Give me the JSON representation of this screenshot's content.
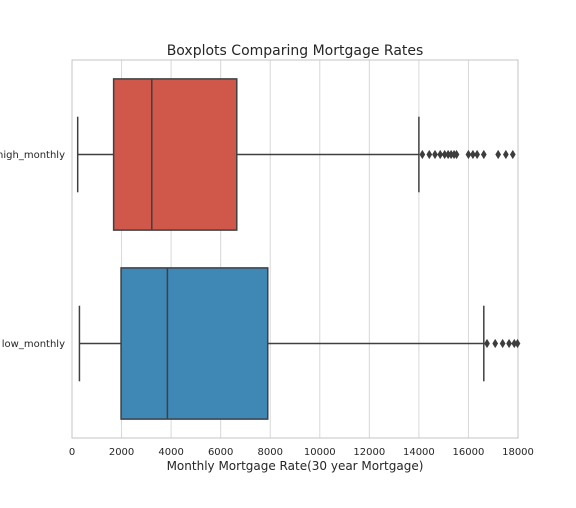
{
  "chart_data": {
    "type": "boxplot",
    "orientation": "horizontal",
    "title": "Boxplots Comparing Mortgage Rates",
    "xlabel": "Monthly Mortgage Rate(30 year Mortgage)",
    "ylabel": "",
    "xlim": [
      0,
      18000
    ],
    "xticks": [
      0,
      2000,
      4000,
      6000,
      8000,
      10000,
      12000,
      14000,
      16000,
      18000
    ],
    "xtick_labels": [
      "0",
      "2000",
      "4000",
      "6000",
      "8000",
      "10000",
      "12000",
      "14000",
      "16000",
      "18000"
    ],
    "grid": "vertical",
    "categories": [
      "high_monthly",
      "low_monthly"
    ],
    "series": [
      {
        "category": "high_monthly",
        "whisker_low": 230,
        "q1": 1680,
        "median": 3220,
        "q3": 6650,
        "whisker_high": 14000,
        "outliers": [
          14140,
          14420,
          14650,
          14860,
          15040,
          15180,
          15300,
          15420,
          15520,
          16000,
          16180,
          16350,
          16620,
          17200,
          17510,
          17790
        ],
        "color": "#d0584a"
      },
      {
        "category": "low_monthly",
        "whisker_low": 300,
        "q1": 1980,
        "median": 3850,
        "q3": 7900,
        "whisker_high": 16620,
        "outliers": [
          16750,
          17080,
          17380,
          17640,
          17850,
          17980
        ],
        "color": "#3f87b5"
      }
    ]
  },
  "colors": {
    "axis_line": "#c4c4c4",
    "grid": "#d8d8d8",
    "box_stroke": "#404040",
    "text": "#262626"
  }
}
